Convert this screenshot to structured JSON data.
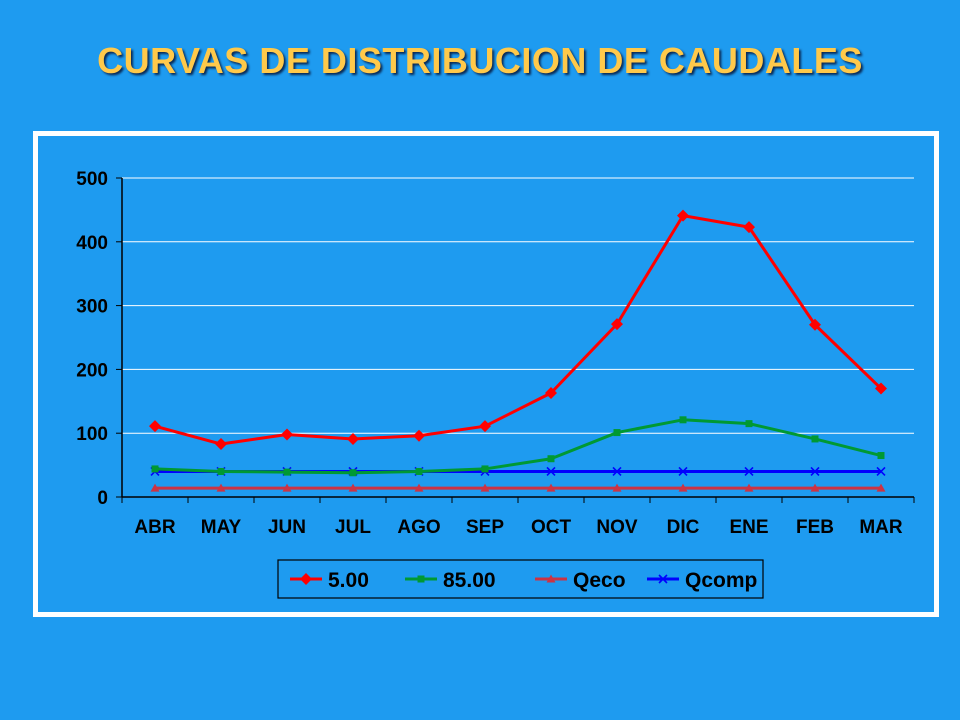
{
  "slide": {
    "title": "CURVAS DE DISTRIBUCION DE CAUDALES"
  },
  "colors": {
    "background": "#1E9BF0",
    "title": "#FFC94A",
    "frame": "#FFFFFF",
    "grid": "#FFFFFF",
    "axis": "#000000"
  },
  "chart_data": {
    "type": "line",
    "categories": [
      "ABR",
      "MAY",
      "JUN",
      "JUL",
      "AGO",
      "SEP",
      "OCT",
      "NOV",
      "DIC",
      "ENE",
      "FEB",
      "MAR"
    ],
    "ylim": [
      0,
      500
    ],
    "yticks": [
      0,
      100,
      200,
      300,
      400,
      500
    ],
    "grid": true,
    "legend": "bottom",
    "series": [
      {
        "name": "5.00",
        "color": "#FF0000",
        "marker": "diamond",
        "values": [
          111,
          83,
          98,
          91,
          96,
          111,
          163,
          271,
          441,
          423,
          270,
          170
        ]
      },
      {
        "name": "85.00",
        "color": "#009933",
        "marker": "square",
        "values": [
          44,
          40,
          39,
          38,
          40,
          44,
          60,
          101,
          121,
          115,
          91,
          65
        ]
      },
      {
        "name": "Qeco",
        "color": "#CC3344",
        "marker": "triangle",
        "values": [
          14,
          14,
          14,
          14,
          14,
          14,
          14,
          14,
          14,
          14,
          14,
          14
        ]
      },
      {
        "name": "Qcomp",
        "color": "#0000FF",
        "marker": "x",
        "values": [
          40,
          40,
          40,
          40,
          40,
          40,
          40,
          40,
          40,
          40,
          40,
          40
        ]
      }
    ]
  }
}
